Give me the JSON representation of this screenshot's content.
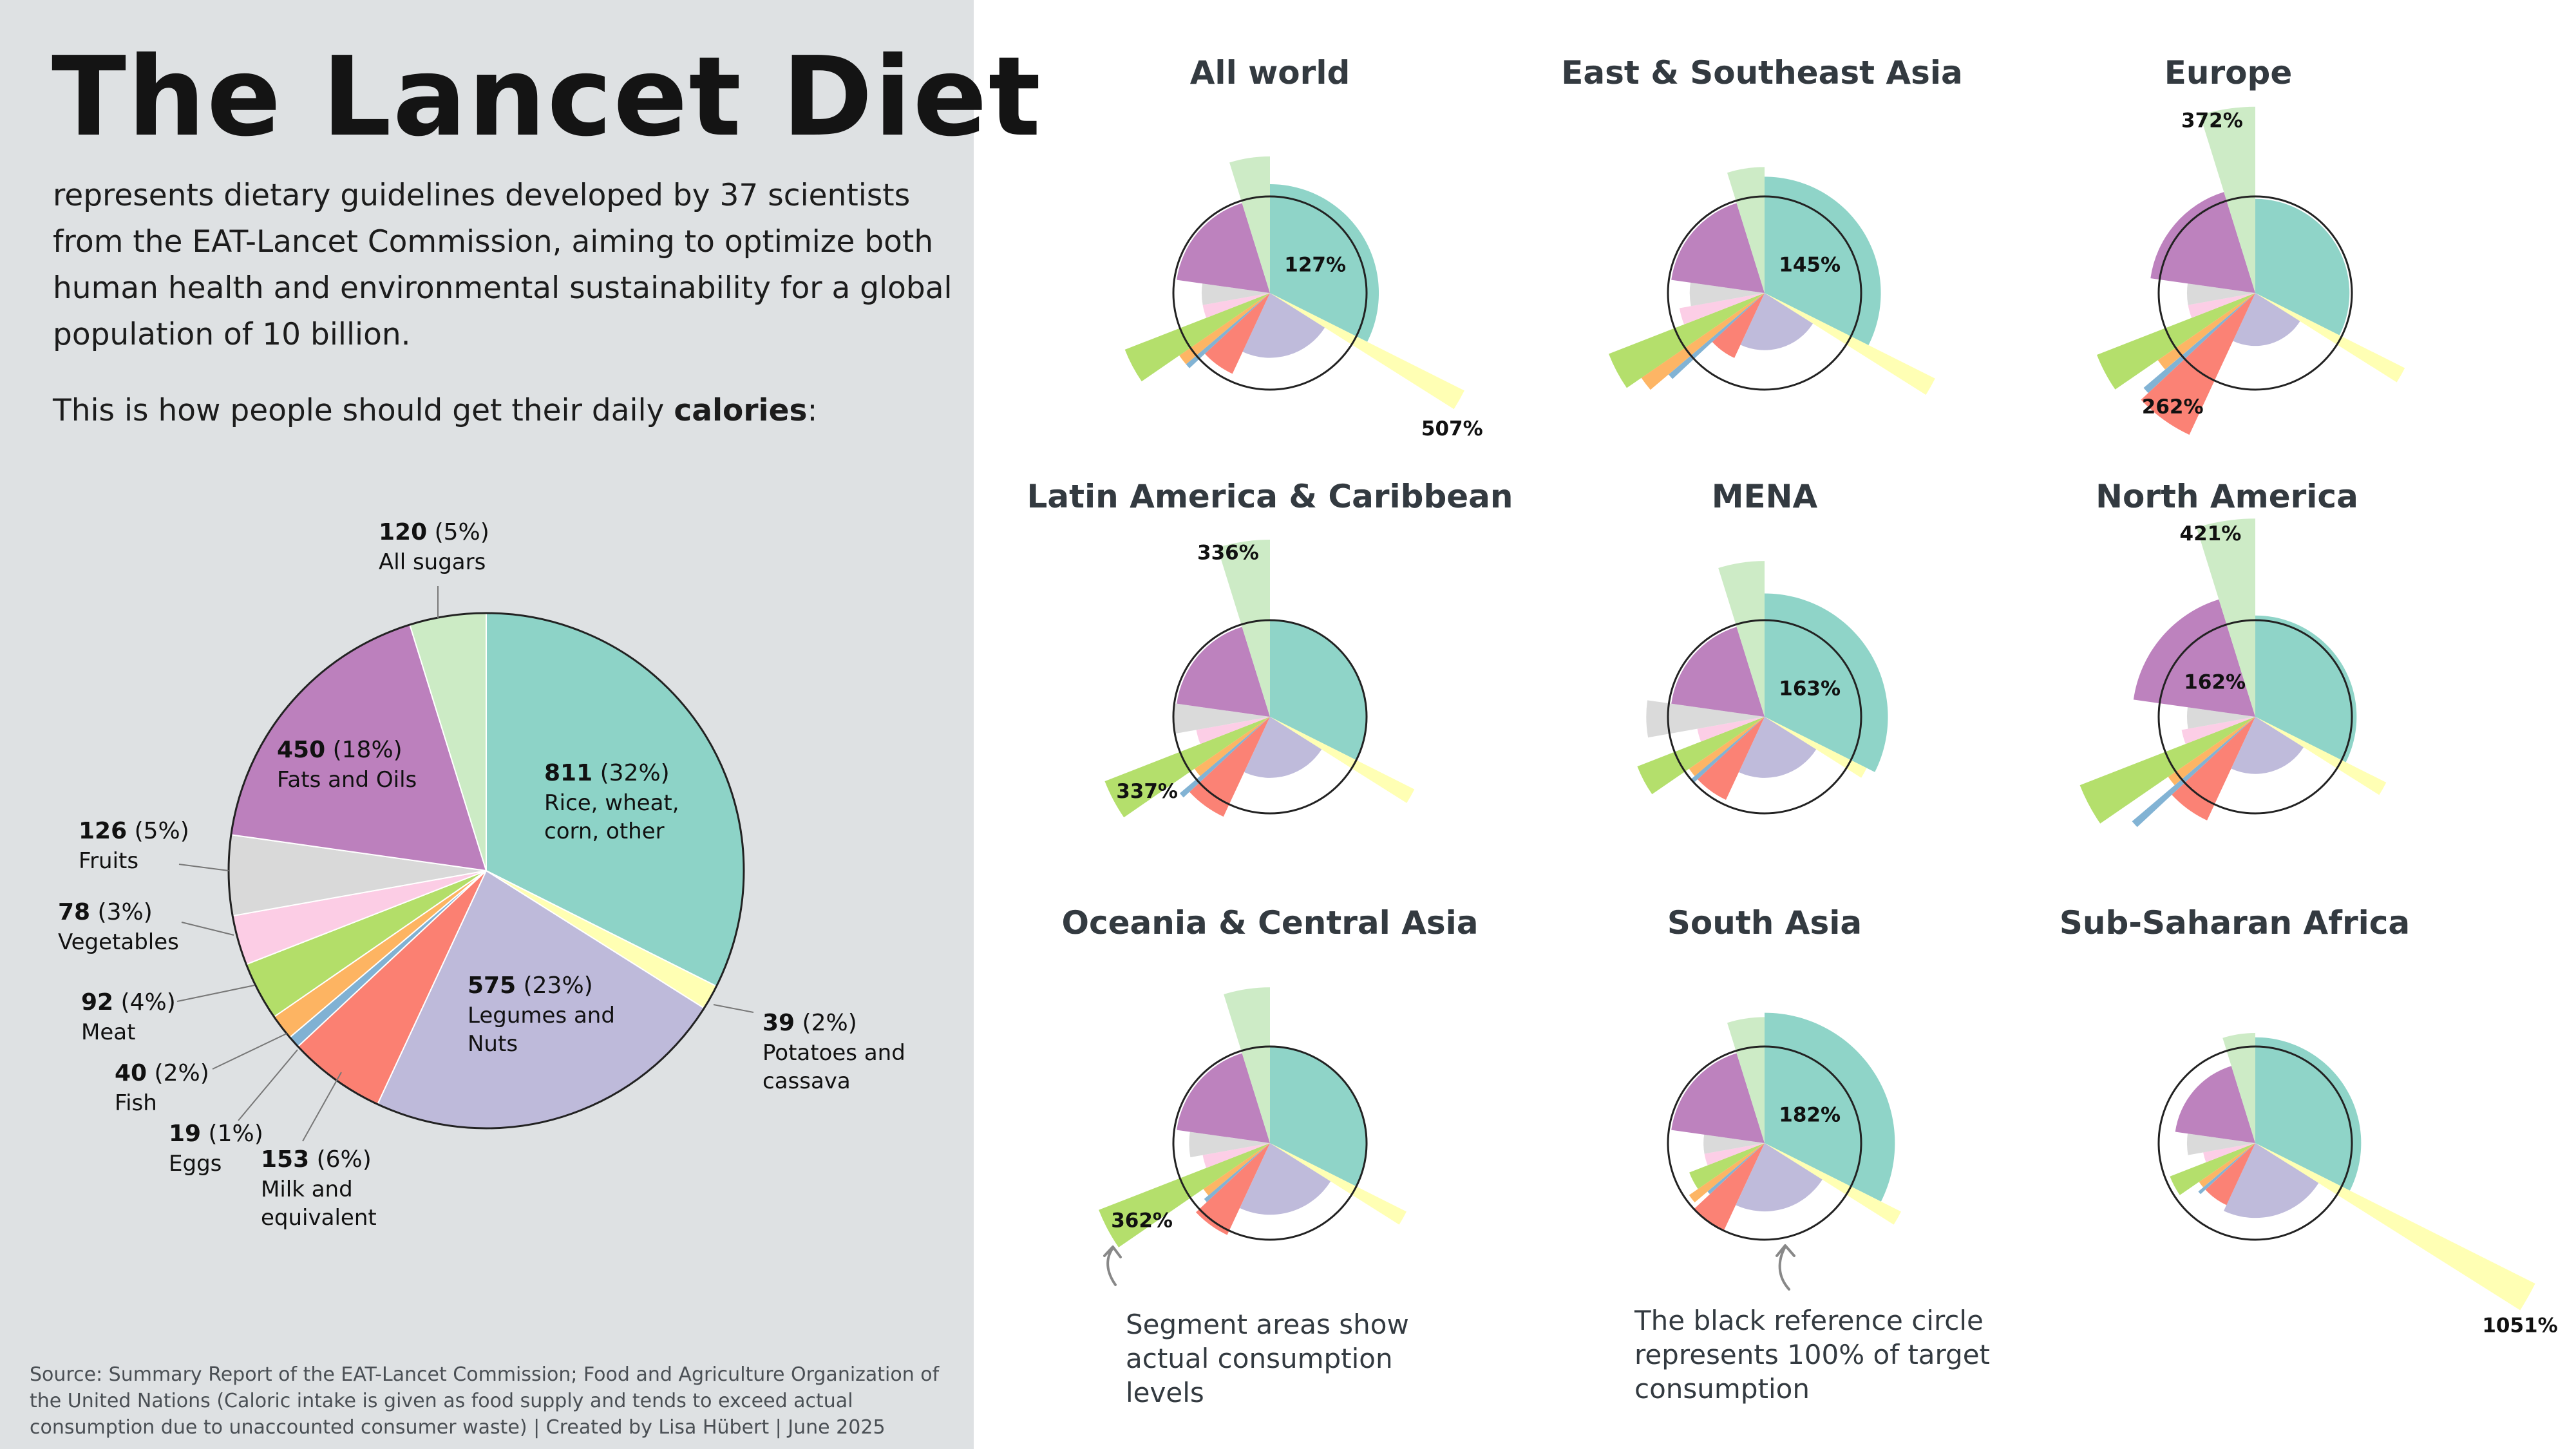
{
  "title": "The Lancet Diet",
  "intro": "represents dietary guidelines developed by 37 scientists from the EAT-Lancet Commission, aiming to optimize both human health and environmental sustainability for a global population of 10 billion.",
  "prompt_pre": "This is how people should get their daily ",
  "prompt_bold": "calories",
  "prompt_post": ":",
  "source": "Source: Summary Report of the EAT-Lancet Commission; Food and Agriculture Organization of the United Nations (Caloric intake is given as food supply and tends to exceed actual consumption due to unaccounted consumer waste)  |  Created by Lisa Hübert  |  June 2025",
  "annotations": {
    "segment_areas": "Segment areas show actual consumption levels",
    "reference_circle": "The black reference circle represents 100% of target consumption"
  },
  "colors": {
    "grains": "#8dd3c7",
    "potatoes": "#ffffb3",
    "legumes": "#bebada",
    "milk": "#fb8072",
    "eggs": "#80b1d3",
    "fish": "#fdb462",
    "meat": "#b3de69",
    "vegetables": "#fccde5",
    "fruits": "#d9d9d9",
    "fats": "#bc80bd",
    "sugars": "#ccebc5",
    "reference": "#222222",
    "left_bg": "#dee1e3"
  },
  "chart_data": [
    {
      "type": "pie",
      "title": "",
      "unit": "kcal",
      "slices": [
        {
          "key": "grains",
          "value": 811,
          "pct": "32%",
          "label": "Rice, wheat, corn, other"
        },
        {
          "key": "potatoes",
          "value": 39,
          "pct": "2%",
          "label": "Potatoes and cassava"
        },
        {
          "key": "legumes",
          "value": 575,
          "pct": "23%",
          "label": "Legumes and Nuts"
        },
        {
          "key": "milk",
          "value": 153,
          "pct": "6%",
          "label": "Milk and equivalent"
        },
        {
          "key": "eggs",
          "value": 19,
          "pct": "1%",
          "label": "Eggs"
        },
        {
          "key": "fish",
          "value": 40,
          "pct": "2%",
          "label": "Fish"
        },
        {
          "key": "meat",
          "value": 92,
          "pct": "4%",
          "label": "Meat"
        },
        {
          "key": "vegetables",
          "value": 78,
          "pct": "3%",
          "label": "Vegetables"
        },
        {
          "key": "fruits",
          "value": 126,
          "pct": "5%",
          "label": "Fruits"
        },
        {
          "key": "fats",
          "value": 450,
          "pct": "18%",
          "label": "Fats and Oils"
        },
        {
          "key": "sugars",
          "value": 120,
          "pct": "5%",
          "label": "All sugars"
        }
      ]
    },
    {
      "type": "polar-area",
      "note": "Each segment keeps the target angle; its radius shows actual consumption as a ratio of target (1 = reference circle).",
      "categories": [
        "grains",
        "potatoes",
        "legumes",
        "milk",
        "eggs",
        "fish",
        "meat",
        "vegetables",
        "fruits",
        "fats",
        "sugars"
      ],
      "regions": [
        {
          "name": "All world",
          "ratios": [
            1.27,
            5.07,
            0.45,
            0.85,
            1.3,
            1.3,
            2.6,
            0.5,
            0.5,
            0.95,
            2.0
          ],
          "labels": [
            {
              "cat": "grains",
              "text": "127%"
            },
            {
              "cat": "potatoes",
              "text": "507%"
            }
          ]
        },
        {
          "name": "East & Southeast Asia",
          "ratios": [
            1.45,
            3.9,
            0.35,
            0.55,
            1.7,
            2.4,
            3.0,
            0.8,
            0.6,
            0.95,
            1.7
          ],
          "labels": [
            {
              "cat": "grains",
              "text": "145%"
            }
          ]
        },
        {
          "name": "Europe",
          "ratios": [
            0.95,
            3.0,
            0.3,
            2.62,
            2.3,
            1.5,
            3.1,
            0.5,
            0.5,
            1.2,
            3.72
          ],
          "labels": [
            {
              "cat": "sugars",
              "text": "372%"
            },
            {
              "cat": "milk",
              "text": "262%"
            }
          ]
        },
        {
          "name": "Latin America & Caribbean",
          "ratios": [
            1.0,
            2.8,
            0.4,
            1.3,
            1.5,
            0.9,
            3.37,
            0.6,
            1.0,
            0.95,
            3.36
          ],
          "labels": [
            {
              "cat": "sugars",
              "text": "336%"
            },
            {
              "cat": "meat",
              "text": "337%"
            }
          ]
        },
        {
          "name": "MENA",
          "ratios": [
            1.63,
            1.4,
            0.4,
            0.9,
            1.0,
            0.9,
            2.0,
            0.5,
            1.5,
            0.95,
            2.6
          ],
          "labels": [
            {
              "cat": "grains",
              "text": "163%"
            }
          ]
        },
        {
          "name": "North America",
          "ratios": [
            1.1,
            2.3,
            0.35,
            1.4,
            2.8,
            1.2,
            3.8,
            0.6,
            0.5,
            1.62,
            4.21
          ],
          "labels": [
            {
              "cat": "sugars",
              "text": "421%"
            },
            {
              "cat": "fats",
              "text": "162%"
            }
          ]
        },
        {
          "name": "Oceania & Central Asia",
          "ratios": [
            1.0,
            2.5,
            0.55,
            1.1,
            0.8,
            0.7,
            3.62,
            0.5,
            0.7,
            0.95,
            2.6
          ],
          "labels": [
            {
              "cat": "meat",
              "text": "362%"
            }
          ]
        },
        {
          "name": "South Asia",
          "ratios": [
            1.82,
            2.5,
            0.5,
            1.0,
            0.6,
            0.9,
            0.7,
            0.4,
            0.4,
            0.95,
            1.7
          ],
          "labels": [
            {
              "cat": "grains",
              "text": "182%"
            }
          ]
        },
        {
          "name": "Sub-Saharan Africa",
          "ratios": [
            1.2,
            10.51,
            0.6,
            0.5,
            0.6,
            0.5,
            0.9,
            0.3,
            0.5,
            0.7,
            1.3
          ],
          "labels": [
            {
              "cat": "potatoes",
              "text": "1051%"
            }
          ]
        }
      ]
    }
  ]
}
